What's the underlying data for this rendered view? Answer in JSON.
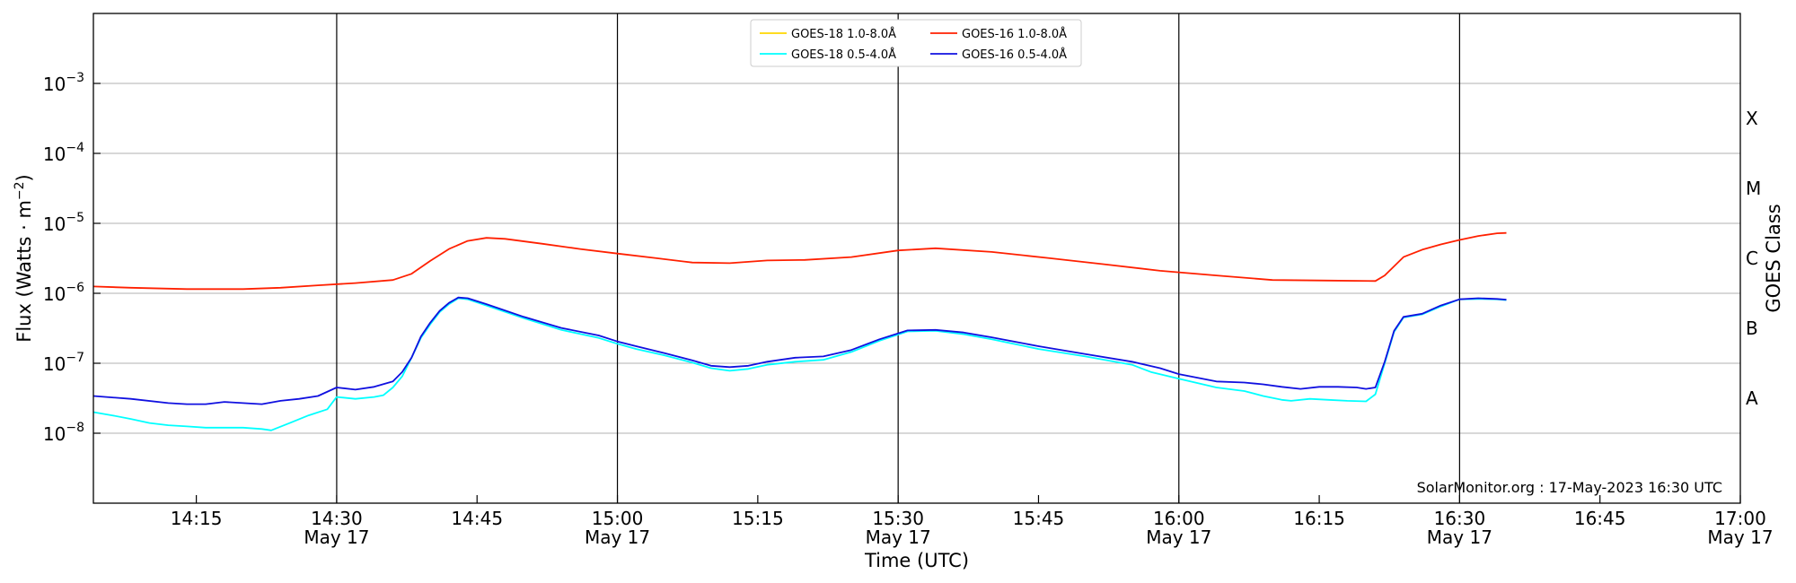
{
  "chart_data": {
    "type": "line",
    "title": "",
    "xlabel": "Time (UTC)",
    "ylabel": "Flux (Watts · m⁻²)",
    "y2label": "GOES Class",
    "y_scale": "log",
    "ylim": [
      1e-09,
      0.01
    ],
    "xlim": [
      "2023-05-17 14:04",
      "2023-05-17 17:00"
    ],
    "grid": "horizontal at each decade",
    "legend_position": "top-center",
    "credit": "SolarMonitor.org : 17-May-2023 16:30 UTC",
    "x_ticks": [
      {
        "time": "14:15",
        "date": ""
      },
      {
        "time": "14:30",
        "date": "May 17"
      },
      {
        "time": "14:45",
        "date": ""
      },
      {
        "time": "15:00",
        "date": "May 17"
      },
      {
        "time": "15:15",
        "date": ""
      },
      {
        "time": "15:30",
        "date": "May 17"
      },
      {
        "time": "15:45",
        "date": ""
      },
      {
        "time": "16:00",
        "date": "May 17"
      },
      {
        "time": "16:15",
        "date": ""
      },
      {
        "time": "16:30",
        "date": "May 17"
      },
      {
        "time": "16:45",
        "date": ""
      },
      {
        "time": "17:00",
        "date": "May 17"
      }
    ],
    "y_ticks": [
      {
        "base": "10",
        "exp": "−8",
        "value": 1e-08
      },
      {
        "base": "10",
        "exp": "−7",
        "value": 1e-07
      },
      {
        "base": "10",
        "exp": "−6",
        "value": 1e-06
      },
      {
        "base": "10",
        "exp": "−5",
        "value": 1e-05
      },
      {
        "base": "10",
        "exp": "−4",
        "value": 0.0001
      },
      {
        "base": "10",
        "exp": "−3",
        "value": 0.001
      }
    ],
    "vertical_lines": [
      "14:30",
      "15:00",
      "15:30",
      "16:00",
      "16:30"
    ],
    "goes_classes": [
      {
        "label": "A",
        "value": 3.16e-08
      },
      {
        "label": "B",
        "value": 3.16e-07
      },
      {
        "label": "C",
        "value": 3.16e-06
      },
      {
        "label": "M",
        "value": 3.16e-05
      },
      {
        "label": "X",
        "value": 0.000316
      }
    ],
    "series": [
      {
        "name": "GOES-18 1.0-8.0Å",
        "color": "#ffd700",
        "points": []
      },
      {
        "name": "GOES-18 0.5-4.0Å",
        "color": "#00ffff",
        "points": [
          [
            "14:04",
            2e-08
          ],
          [
            "14:06",
            1.8e-08
          ],
          [
            "14:08",
            1.6e-08
          ],
          [
            "14:10",
            1.4e-08
          ],
          [
            "14:12",
            1.3e-08
          ],
          [
            "14:14",
            1.25e-08
          ],
          [
            "14:16",
            1.2e-08
          ],
          [
            "14:18",
            1.2e-08
          ],
          [
            "14:20",
            1.2e-08
          ],
          [
            "14:22",
            1.15e-08
          ],
          [
            "14:23",
            1.1e-08
          ],
          [
            "14:25",
            1.4e-08
          ],
          [
            "14:27",
            1.8e-08
          ],
          [
            "14:29",
            2.2e-08
          ],
          [
            "14:30",
            3.3e-08
          ],
          [
            "14:32",
            3.1e-08
          ],
          [
            "14:34",
            3.3e-08
          ],
          [
            "14:35",
            3.5e-08
          ],
          [
            "14:36",
            4.5e-08
          ],
          [
            "14:37",
            6.5e-08
          ],
          [
            "14:38",
            1.2e-07
          ],
          [
            "14:39",
            2.3e-07
          ],
          [
            "14:40",
            3.6e-07
          ],
          [
            "14:41",
            5.4e-07
          ],
          [
            "14:42",
            7e-07
          ],
          [
            "14:43",
            8.5e-07
          ],
          [
            "14:44",
            8.2e-07
          ],
          [
            "14:46",
            6.7e-07
          ],
          [
            "14:50",
            4.4e-07
          ],
          [
            "14:54",
            3e-07
          ],
          [
            "14:58",
            2.3e-07
          ],
          [
            "15:00",
            1.9e-07
          ],
          [
            "15:02",
            1.6e-07
          ],
          [
            "15:05",
            1.3e-07
          ],
          [
            "15:08",
            1.02e-07
          ],
          [
            "15:10",
            8.5e-08
          ],
          [
            "15:12",
            7.8e-08
          ],
          [
            "15:14",
            8.3e-08
          ],
          [
            "15:16",
            9.5e-08
          ],
          [
            "15:19",
            1.05e-07
          ],
          [
            "15:22",
            1.12e-07
          ],
          [
            "15:25",
            1.45e-07
          ],
          [
            "15:28",
            2.1e-07
          ],
          [
            "15:31",
            2.85e-07
          ],
          [
            "15:34",
            2.9e-07
          ],
          [
            "15:37",
            2.6e-07
          ],
          [
            "15:40",
            2.2e-07
          ],
          [
            "15:45",
            1.6e-07
          ],
          [
            "15:50",
            1.25e-07
          ],
          [
            "15:55",
            9.5e-08
          ],
          [
            "15:57",
            7.5e-08
          ],
          [
            "16:00",
            6e-08
          ],
          [
            "16:04",
            4.5e-08
          ],
          [
            "16:07",
            4e-08
          ],
          [
            "16:09",
            3.4e-08
          ],
          [
            "16:11",
            3e-08
          ],
          [
            "16:12",
            2.9e-08
          ],
          [
            "16:14",
            3.1e-08
          ],
          [
            "16:16",
            3e-08
          ],
          [
            "16:18",
            2.9e-08
          ],
          [
            "16:20",
            2.85e-08
          ],
          [
            "16:21",
            3.6e-08
          ],
          [
            "16:22",
            1e-07
          ],
          [
            "16:23",
            2.8e-07
          ],
          [
            "16:24",
            4.5e-07
          ],
          [
            "16:26",
            5e-07
          ],
          [
            "16:28",
            6.5e-07
          ],
          [
            "16:30",
            8.2e-07
          ],
          [
            "16:32",
            8.3e-07
          ],
          [
            "16:34",
            8.2e-07
          ],
          [
            "16:35",
            8e-07
          ]
        ]
      },
      {
        "name": "GOES-16 1.0-8.0Å",
        "color": "#ff2000",
        "points": [
          [
            "14:04",
            1.25e-06
          ],
          [
            "14:08",
            1.2e-06
          ],
          [
            "14:14",
            1.15e-06
          ],
          [
            "14:20",
            1.15e-06
          ],
          [
            "14:24",
            1.2e-06
          ],
          [
            "14:28",
            1.3e-06
          ],
          [
            "14:32",
            1.4e-06
          ],
          [
            "14:36",
            1.55e-06
          ],
          [
            "14:38",
            1.9e-06
          ],
          [
            "14:40",
            2.9e-06
          ],
          [
            "14:42",
            4.3e-06
          ],
          [
            "14:44",
            5.6e-06
          ],
          [
            "14:46",
            6.2e-06
          ],
          [
            "14:48",
            6e-06
          ],
          [
            "14:52",
            5.1e-06
          ],
          [
            "14:56",
            4.3e-06
          ],
          [
            "15:00",
            3.7e-06
          ],
          [
            "15:04",
            3.2e-06
          ],
          [
            "15:08",
            2.75e-06
          ],
          [
            "15:12",
            2.7e-06
          ],
          [
            "15:16",
            2.95e-06
          ],
          [
            "15:20",
            3e-06
          ],
          [
            "15:25",
            3.3e-06
          ],
          [
            "15:30",
            4.1e-06
          ],
          [
            "15:34",
            4.4e-06
          ],
          [
            "15:40",
            3.9e-06
          ],
          [
            "15:46",
            3.2e-06
          ],
          [
            "15:52",
            2.6e-06
          ],
          [
            "15:58",
            2.1e-06
          ],
          [
            "16:04",
            1.8e-06
          ],
          [
            "16:10",
            1.55e-06
          ],
          [
            "16:16",
            1.52e-06
          ],
          [
            "16:21",
            1.5e-06
          ],
          [
            "16:22",
            1.8e-06
          ],
          [
            "16:24",
            3.3e-06
          ],
          [
            "16:26",
            4.2e-06
          ],
          [
            "16:28",
            5e-06
          ],
          [
            "16:30",
            5.8e-06
          ],
          [
            "16:32",
            6.6e-06
          ],
          [
            "16:34",
            7.2e-06
          ],
          [
            "16:35",
            7.3e-06
          ]
        ]
      },
      {
        "name": "GOES-16 0.5-4.0Å",
        "color": "#1010e0",
        "points": [
          [
            "14:04",
            3.4e-08
          ],
          [
            "14:08",
            3.1e-08
          ],
          [
            "14:12",
            2.7e-08
          ],
          [
            "14:14",
            2.6e-08
          ],
          [
            "14:16",
            2.6e-08
          ],
          [
            "14:18",
            2.8e-08
          ],
          [
            "14:20",
            2.7e-08
          ],
          [
            "14:22",
            2.6e-08
          ],
          [
            "14:24",
            2.9e-08
          ],
          [
            "14:26",
            3.1e-08
          ],
          [
            "14:28",
            3.4e-08
          ],
          [
            "14:30",
            4.5e-08
          ],
          [
            "14:32",
            4.2e-08
          ],
          [
            "14:34",
            4.6e-08
          ],
          [
            "14:36",
            5.5e-08
          ],
          [
            "14:37",
            7.5e-08
          ],
          [
            "14:38",
            1.2e-07
          ],
          [
            "14:39",
            2.4e-07
          ],
          [
            "14:40",
            3.8e-07
          ],
          [
            "14:41",
            5.6e-07
          ],
          [
            "14:42",
            7.3e-07
          ],
          [
            "14:43",
            8.7e-07
          ],
          [
            "14:44",
            8.5e-07
          ],
          [
            "14:46",
            7e-07
          ],
          [
            "14:50",
            4.6e-07
          ],
          [
            "14:54",
            3.2e-07
          ],
          [
            "14:58",
            2.5e-07
          ],
          [
            "15:00",
            2.05e-07
          ],
          [
            "15:02",
            1.75e-07
          ],
          [
            "15:05",
            1.4e-07
          ],
          [
            "15:08",
            1.1e-07
          ],
          [
            "15:10",
            9.2e-08
          ],
          [
            "15:12",
            8.8e-08
          ],
          [
            "15:14",
            9.2e-08
          ],
          [
            "15:16",
            1.05e-07
          ],
          [
            "15:19",
            1.2e-07
          ],
          [
            "15:22",
            1.25e-07
          ],
          [
            "15:25",
            1.55e-07
          ],
          [
            "15:28",
            2.2e-07
          ],
          [
            "15:31",
            2.95e-07
          ],
          [
            "15:34",
            3e-07
          ],
          [
            "15:37",
            2.75e-07
          ],
          [
            "15:40",
            2.35e-07
          ],
          [
            "15:45",
            1.75e-07
          ],
          [
            "15:50",
            1.35e-07
          ],
          [
            "15:55",
            1.05e-07
          ],
          [
            "15:58",
            8.5e-08
          ],
          [
            "16:00",
            7e-08
          ],
          [
            "16:04",
            5.5e-08
          ],
          [
            "16:07",
            5.3e-08
          ],
          [
            "16:09",
            5e-08
          ],
          [
            "16:11",
            4.6e-08
          ],
          [
            "16:13",
            4.3e-08
          ],
          [
            "16:15",
            4.6e-08
          ],
          [
            "16:17",
            4.6e-08
          ],
          [
            "16:19",
            4.5e-08
          ],
          [
            "16:20",
            4.3e-08
          ],
          [
            "16:21",
            4.5e-08
          ],
          [
            "16:22",
            1.05e-07
          ],
          [
            "16:23",
            2.9e-07
          ],
          [
            "16:24",
            4.6e-07
          ],
          [
            "16:26",
            5.1e-07
          ],
          [
            "16:28",
            6.7e-07
          ],
          [
            "16:30",
            8.2e-07
          ],
          [
            "16:32",
            8.5e-07
          ],
          [
            "16:34",
            8.3e-07
          ],
          [
            "16:35",
            8.1e-07
          ]
        ]
      }
    ]
  }
}
